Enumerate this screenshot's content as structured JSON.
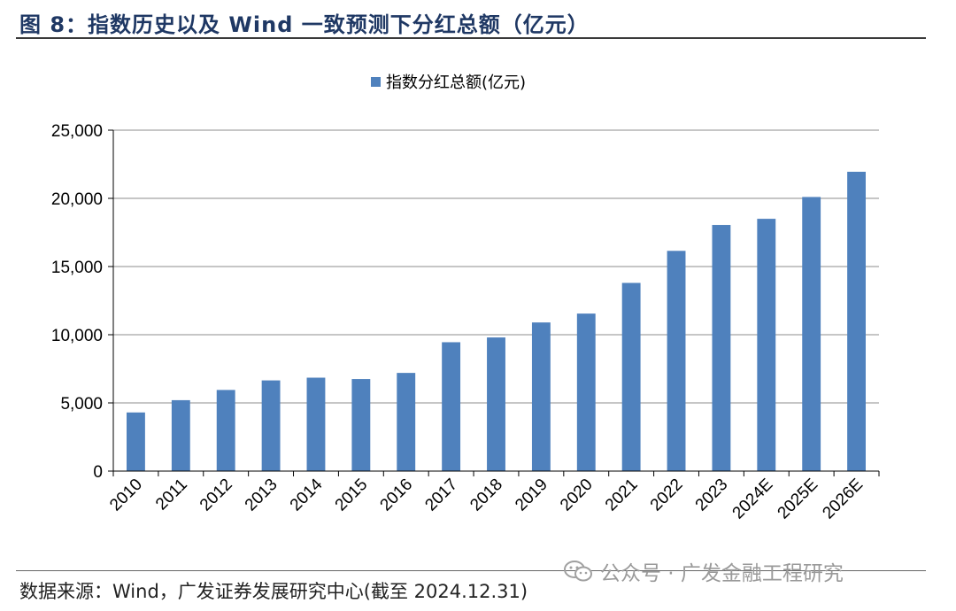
{
  "figure": {
    "title": "图 8：指数历史以及 Wind 一致预测下分红总额（亿元）",
    "source": "数据来源：Wind，广发证券发展研究中心(截至 2024.12.31)",
    "watermark": "公众号 · 广发金融工程研究",
    "watermark_icon": "wechat-icon"
  },
  "chart_data": {
    "type": "bar",
    "title": "图 8：指数历史以及 Wind 一致预测下分红总额（亿元）",
    "xlabel": "",
    "ylabel": "",
    "categories": [
      "2010",
      "2011",
      "2012",
      "2013",
      "2014",
      "2015",
      "2016",
      "2017",
      "2018",
      "2019",
      "2020",
      "2021",
      "2022",
      "2023",
      "2024E",
      "2025E",
      "2026E"
    ],
    "series": [
      {
        "name": "指数分红总额(亿元)",
        "color": "#4f81bd",
        "values": [
          4300,
          5200,
          5950,
          6650,
          6850,
          6750,
          7200,
          9450,
          9800,
          10900,
          11550,
          13800,
          16150,
          18050,
          18500,
          20100,
          21950
        ]
      }
    ],
    "ylim": [
      0,
      25000
    ],
    "yticks": [
      0,
      5000,
      10000,
      15000,
      20000,
      25000
    ],
    "ytick_labels": [
      "0",
      "5,000",
      "10,000",
      "15,000",
      "20,000",
      "25,000"
    ],
    "grid": true,
    "legend_position": "top-center"
  }
}
